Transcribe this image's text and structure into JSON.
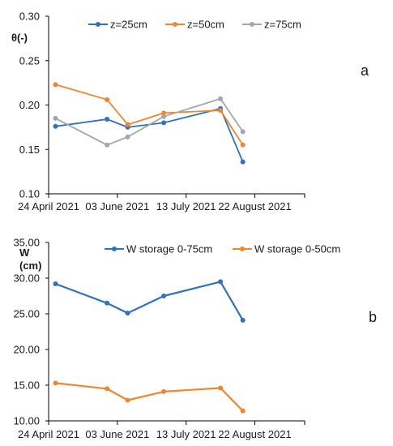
{
  "colors": {
    "blue": "#2f72c0",
    "orange": "#f0862f",
    "gray": "#a6a6a6",
    "axis": "#000000"
  },
  "chart_data": [
    {
      "type": "line",
      "panel_label": "a",
      "ylabel": "θ(-)",
      "xlabel": "",
      "x_axis_type": "date",
      "xlim": [
        "2021-04-24",
        "2021-09-20"
      ],
      "x_ticks": [
        "2021-04-24",
        "2021-06-03",
        "2021-07-13",
        "2021-08-22"
      ],
      "x_tick_labels": [
        "24 April 2021",
        "03 June 2021",
        "13 July 2021",
        "22 August 2021"
      ],
      "ylim": [
        0.1,
        0.3
      ],
      "y_ticks": [
        0.1,
        0.15,
        0.2,
        0.25,
        0.3
      ],
      "y_tick_labels": [
        "0.10",
        "0.15",
        "0.20",
        "0.25",
        "0.30"
      ],
      "grid": false,
      "legend_position": "top",
      "x": [
        "2021-04-28",
        "2021-05-28",
        "2021-06-09",
        "2021-06-30",
        "2021-08-02",
        "2021-08-15"
      ],
      "series": [
        {
          "name": "z=25cm",
          "color": "blue",
          "values": [
            0.176,
            0.184,
            0.175,
            0.18,
            0.196,
            0.136
          ]
        },
        {
          "name": "z=50cm",
          "color": "orange",
          "values": [
            0.223,
            0.206,
            0.178,
            0.191,
            0.194,
            0.155
          ]
        },
        {
          "name": "z=75cm",
          "color": "gray",
          "values": [
            0.185,
            0.155,
            0.164,
            0.187,
            0.207,
            0.17
          ]
        }
      ]
    },
    {
      "type": "line",
      "panel_label": "b",
      "ylabel": [
        "W",
        "(cm)"
      ],
      "xlabel": "",
      "x_axis_type": "date",
      "xlim": [
        "2021-04-24",
        "2021-09-20"
      ],
      "x_ticks": [
        "2021-04-24",
        "2021-06-03",
        "2021-07-13",
        "2021-08-22"
      ],
      "x_tick_labels": [
        "24 April 2021",
        "03 June 2021",
        "13 July 2021",
        "22 August 2021"
      ],
      "ylim": [
        10,
        35
      ],
      "y_ticks": [
        10,
        15,
        20,
        25,
        30,
        35
      ],
      "y_tick_labels": [
        "10.00",
        "15.00",
        "20.00",
        "25.00",
        "30.00",
        "35.00"
      ],
      "grid": false,
      "legend_position": "top",
      "x": [
        "2021-04-28",
        "2021-05-28",
        "2021-06-09",
        "2021-06-30",
        "2021-08-02",
        "2021-08-15"
      ],
      "series": [
        {
          "name": "W storage 0-75cm",
          "color": "blue",
          "values": [
            29.2,
            26.5,
            25.1,
            27.5,
            29.5,
            24.1
          ]
        },
        {
          "name": "W storage 0-50cm",
          "color": "orange",
          "values": [
            15.3,
            14.5,
            12.9,
            14.1,
            14.6,
            11.4
          ]
        }
      ]
    }
  ]
}
